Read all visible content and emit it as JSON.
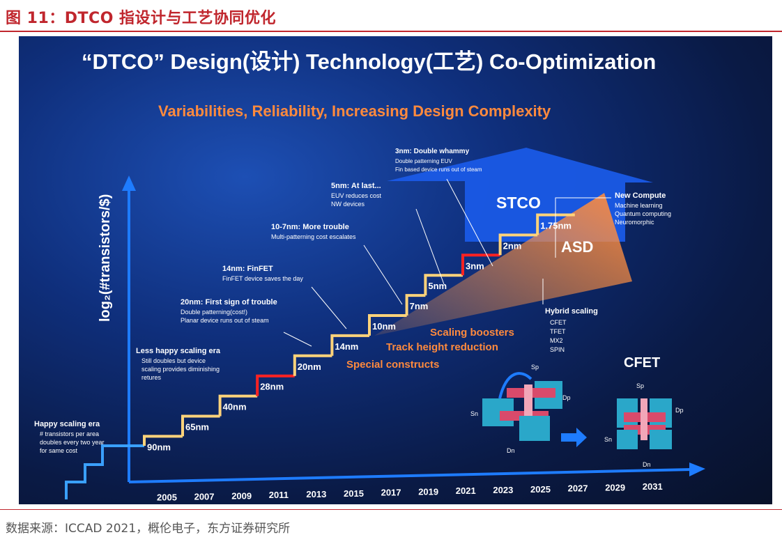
{
  "figure": {
    "title": "图 11：DTCO 指设计与工艺协同优化",
    "source": "数据来源：ICCAD 2021，概伦电子，东方证券研究所"
  },
  "colors": {
    "red": "#c0262d",
    "orange": "#ff8a3d",
    "blue": "#1a5ae6",
    "step_yellow": "#ffd37a",
    "step_red": "#ff2222"
  },
  "chart_data": {
    "type": "line",
    "title": "“DTCO”  Design(设计) Technology(工艺) Co-Optimization",
    "subtitle": "Variabilities, Reliability, Increasing Design Complexity",
    "ylabel": "log₂(#transistors/$)",
    "xlabel": "",
    "x": [
      "2005",
      "2007",
      "2009",
      "2011",
      "2013",
      "2015",
      "2017",
      "2019",
      "2021",
      "2023",
      "2025",
      "2027",
      "2029",
      "2031"
    ],
    "nodes": [
      {
        "label": "90nm",
        "year": 2005
      },
      {
        "label": "65nm",
        "year": 2007
      },
      {
        "label": "40nm",
        "year": 2009
      },
      {
        "label": "28nm",
        "year": 2011
      },
      {
        "label": "20nm",
        "year": 2013
      },
      {
        "label": "14nm",
        "year": 2015
      },
      {
        "label": "10nm",
        "year": 2017
      },
      {
        "label": "7nm",
        "year": 2018
      },
      {
        "label": "5nm",
        "year": 2020
      },
      {
        "label": "3nm",
        "year": 2022
      },
      {
        "label": "2nm",
        "year": 2024
      },
      {
        "label": "1.75nm",
        "year": 2026
      }
    ],
    "eras": [
      {
        "title": "Happy scaling era",
        "lines": [
          "# transistors per area",
          "doubles every two year",
          "for same cost"
        ]
      },
      {
        "title": "Less happy scaling era",
        "lines": [
          "Still doubles but device",
          "scaling provides diminishing",
          "retures"
        ]
      },
      {
        "title": "20nm: First sign of trouble",
        "lines": [
          "Double patterning(cost!)",
          "Planar device runs out of steam"
        ]
      },
      {
        "title": "14nm: FinFET",
        "lines": [
          "FinFET device saves the day"
        ]
      },
      {
        "title": "10-7nm: More trouble",
        "lines": [
          "Multi-patterning cost escalates"
        ]
      },
      {
        "title": "5nm: At last...",
        "lines": [
          "EUV reduces cost",
          "NW devices"
        ]
      },
      {
        "title": "3nm: Double whammy",
        "lines": [
          "Double patterning EUV",
          "Fin based device runs out of steam"
        ]
      },
      {
        "title": "New Compute",
        "lines": [
          "Machine learning",
          "Quantum computing",
          "Neuromorphic"
        ]
      }
    ],
    "boosters": [
      "Scaling boosters",
      "Track height reduction",
      "Special constructs"
    ],
    "hybrid": {
      "title": "Hybrid scaling",
      "items": [
        "CFET",
        "TFET",
        "MX2",
        "SPIN"
      ]
    },
    "regions": {
      "stco": "STCO",
      "asd": "ASD"
    },
    "cfet": {
      "title": "CFET",
      "labels": [
        "Sp",
        "Dp",
        "Sn",
        "Dn",
        "Sp",
        "Dp",
        "Sn",
        "Dn"
      ]
    }
  }
}
